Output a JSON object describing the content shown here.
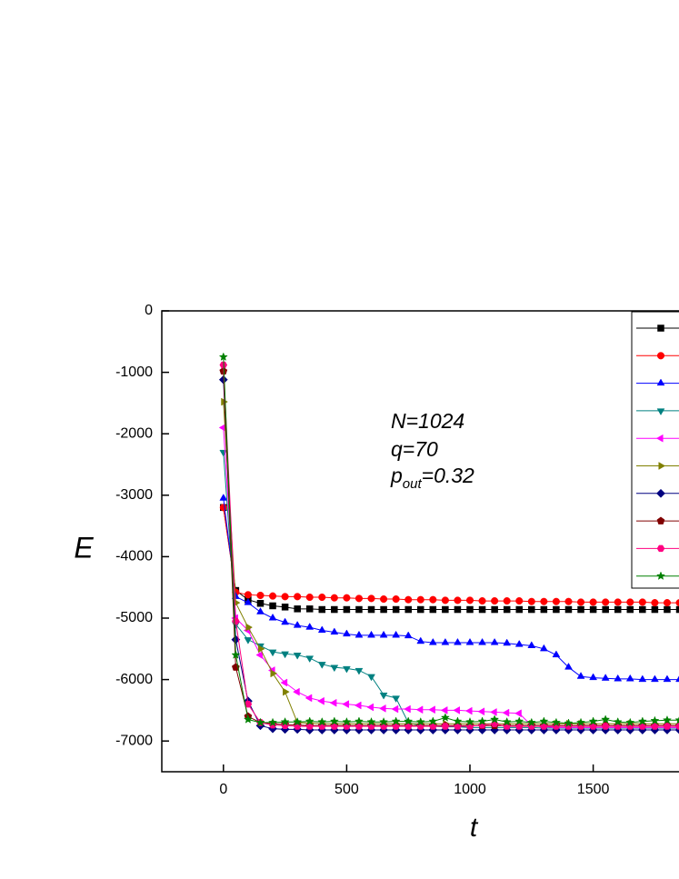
{
  "chart_data": {
    "type": "line",
    "x_label": "t",
    "y_label": "E",
    "annotation": {
      "lines": [
        "N=1024",
        "q=70"
      ],
      "p_line": [
        "p",
        "out",
        "=0.32"
      ]
    },
    "xlim": [
      -250,
      2250
    ],
    "ylim": [
      -7500,
      0
    ],
    "xticks": [
      0,
      500,
      1000,
      1500
    ],
    "yticks": [
      0,
      -1000,
      -2000,
      -3000,
      -4000,
      -5000,
      -6000,
      -7000
    ],
    "legend": "upper right",
    "x": [
      0,
      50,
      100,
      150,
      200,
      250,
      300,
      350,
      400,
      450,
      500,
      550,
      600,
      650,
      700,
      750,
      800,
      850,
      900,
      950,
      1000,
      1050,
      1100,
      1150,
      1200,
      1250,
      1300,
      1350,
      1400,
      1450,
      1500,
      1550,
      1600,
      1650,
      1700,
      1750,
      1800,
      1850
    ],
    "series": [
      {
        "color": "#000000",
        "marker": "square",
        "values": [
          -3200,
          -4550,
          -4700,
          -4760,
          -4800,
          -4820,
          -4850,
          -4850,
          -4860,
          -4860,
          -4860,
          -4860,
          -4860,
          -4860,
          -4860,
          -4860,
          -4860,
          -4860,
          -4860,
          -4860,
          -4860,
          -4860,
          -4860,
          -4860,
          -4860,
          -4860,
          -4860,
          -4860,
          -4860,
          -4860,
          -4860,
          -4860,
          -4860,
          -4860,
          -4860,
          -4860,
          -4860,
          -4860
        ]
      },
      {
        "color": "#ff0000",
        "marker": "circle",
        "values": [
          -3200,
          -4580,
          -4620,
          -4630,
          -4640,
          -4650,
          -4650,
          -4660,
          -4660,
          -4670,
          -4670,
          -4680,
          -4680,
          -4690,
          -4690,
          -4700,
          -4700,
          -4700,
          -4710,
          -4710,
          -4710,
          -4720,
          -4720,
          -4720,
          -4720,
          -4730,
          -4730,
          -4730,
          -4730,
          -4740,
          -4740,
          -4740,
          -4740,
          -4740,
          -4740,
          -4750,
          -4750,
          -4750
        ]
      },
      {
        "color": "#0000ff",
        "marker": "triangle-up",
        "values": [
          -3050,
          -4650,
          -4750,
          -4900,
          -5000,
          -5070,
          -5120,
          -5150,
          -5200,
          -5230,
          -5260,
          -5280,
          -5280,
          -5280,
          -5280,
          -5290,
          -5380,
          -5400,
          -5400,
          -5400,
          -5400,
          -5400,
          -5400,
          -5410,
          -5430,
          -5450,
          -5500,
          -5600,
          -5800,
          -5950,
          -5970,
          -5980,
          -5990,
          -5990,
          -6000,
          -6000,
          -6000,
          -6000
        ]
      },
      {
        "color": "#008080",
        "marker": "triangle-down",
        "values": [
          -2300,
          -5100,
          -5350,
          -5450,
          -5550,
          -5580,
          -5600,
          -5650,
          -5750,
          -5800,
          -5820,
          -5850,
          -5950,
          -6250,
          -6300,
          -6700,
          -6750,
          -6760,
          -6770,
          -6770,
          -6780,
          -6780,
          -6780,
          -6780,
          -6780,
          -6780,
          -6790,
          -6790,
          -6790,
          -6790,
          -6790,
          -6790,
          -6790,
          -6790,
          -6790,
          -6790,
          -6790,
          -6790
        ]
      },
      {
        "color": "#ff00ff",
        "marker": "triangle-left",
        "values": [
          -1900,
          -5000,
          -5200,
          -5600,
          -5850,
          -6050,
          -6200,
          -6300,
          -6350,
          -6380,
          -6400,
          -6420,
          -6450,
          -6470,
          -6480,
          -6480,
          -6490,
          -6490,
          -6500,
          -6500,
          -6510,
          -6520,
          -6530,
          -6540,
          -6550,
          -6750,
          -6770,
          -6780,
          -6780,
          -6780,
          -6780,
          -6780,
          -6780,
          -6780,
          -6780,
          -6780,
          -6780,
          -6780
        ]
      },
      {
        "color": "#808000",
        "marker": "triangle-right",
        "values": [
          -1480,
          -4750,
          -5150,
          -5500,
          -5900,
          -6200,
          -6700,
          -6710,
          -6720,
          -6720,
          -6720,
          -6720,
          -6720,
          -6720,
          -6720,
          -6720,
          -6720,
          -6720,
          -6720,
          -6720,
          -6720,
          -6720,
          -6720,
          -6720,
          -6720,
          -6720,
          -6720,
          -6720,
          -6720,
          -6720,
          -6720,
          -6720,
          -6720,
          -6720,
          -6720,
          -6720,
          -6720,
          -6720
        ]
      },
      {
        "color": "#000080",
        "marker": "diamond",
        "values": [
          -1120,
          -5350,
          -6350,
          -6750,
          -6800,
          -6810,
          -6810,
          -6820,
          -6820,
          -6820,
          -6820,
          -6820,
          -6820,
          -6820,
          -6820,
          -6820,
          -6820,
          -6820,
          -6820,
          -6820,
          -6820,
          -6820,
          -6820,
          -6820,
          -6820,
          -6820,
          -6820,
          -6820,
          -6820,
          -6820,
          -6820,
          -6820,
          -6820,
          -6820,
          -6820,
          -6820,
          -6820,
          -6820
        ]
      },
      {
        "color": "#800000",
        "marker": "pentagon",
        "values": [
          -980,
          -5800,
          -6600,
          -6700,
          -6720,
          -6730,
          -6740,
          -6750,
          -6750,
          -6750,
          -6750,
          -6750,
          -6750,
          -6750,
          -6750,
          -6750,
          -6750,
          -6750,
          -6750,
          -6750,
          -6750,
          -6750,
          -6750,
          -6750,
          -6750,
          -6750,
          -6750,
          -6750,
          -6750,
          -6750,
          -6750,
          -6750,
          -6750,
          -6750,
          -6750,
          -6750,
          -6750,
          -6750
        ]
      },
      {
        "color": "#ff0080",
        "marker": "hexagon",
        "values": [
          -880,
          -5050,
          -6400,
          -6700,
          -6740,
          -6750,
          -6760,
          -6760,
          -6760,
          -6760,
          -6760,
          -6760,
          -6760,
          -6760,
          -6760,
          -6760,
          -6760,
          -6760,
          -6760,
          -6760,
          -6760,
          -6740,
          -6720,
          -6760,
          -6760,
          -6760,
          -6760,
          -6760,
          -6760,
          -6760,
          -6760,
          -6760,
          -6760,
          -6760,
          -6760,
          -6760,
          -6760,
          -6760
        ]
      },
      {
        "color": "#008000",
        "marker": "star",
        "values": [
          -750,
          -5600,
          -6650,
          -6700,
          -6700,
          -6690,
          -6690,
          -6680,
          -6690,
          -6680,
          -6690,
          -6680,
          -6690,
          -6690,
          -6680,
          -6680,
          -6690,
          -6680,
          -6620,
          -6680,
          -6690,
          -6680,
          -6650,
          -6690,
          -6680,
          -6700,
          -6680,
          -6700,
          -6710,
          -6700,
          -6680,
          -6650,
          -6690,
          -6700,
          -6680,
          -6670,
          -6660,
          -6660
        ]
      }
    ]
  }
}
